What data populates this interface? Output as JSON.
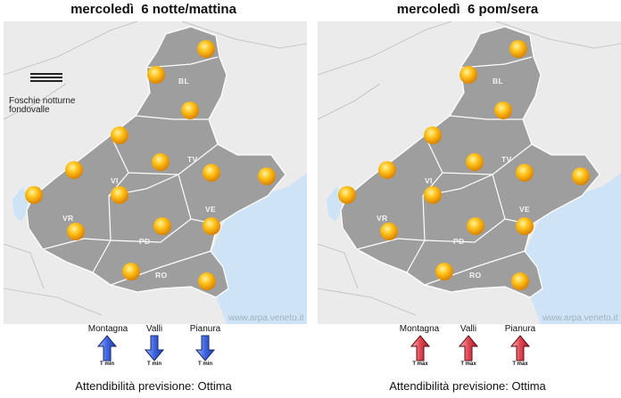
{
  "panels": [
    {
      "title": "mercoledì  6 notte/mattina",
      "legend_line1": "Foschie notturne",
      "legend_line2": "fondovalle",
      "credit": "www.arpa.veneto.it",
      "regions": [
        "BL",
        "TV",
        "VI",
        "VR",
        "VE",
        "PD",
        "RO"
      ],
      "temps": [
        {
          "zone": "Montagna",
          "caption": "T min",
          "trend": "up"
        },
        {
          "zone": "Valli",
          "caption": "T min",
          "trend": "down"
        },
        {
          "zone": "Pianura",
          "caption": "T min",
          "trend": "down"
        }
      ],
      "arrow_color": "#4a6fe0",
      "footer": "Attendibilità previsione: Ottima"
    },
    {
      "title": "mercoledì  6 pom/sera",
      "credit": "www.arpa.veneto.it",
      "regions": [
        "BL",
        "TV",
        "VI",
        "VR",
        "VE",
        "PD",
        "RO"
      ],
      "temps": [
        {
          "zone": "Montagna",
          "caption": "T max",
          "trend": "up"
        },
        {
          "zone": "Valli",
          "caption": "T max",
          "trend": "up"
        },
        {
          "zone": "Pianura",
          "caption": "T max",
          "trend": "up"
        }
      ],
      "arrow_color": "#e0505a",
      "footer": "Attendibilità previsione: Ottima"
    }
  ],
  "weather_icon": "sun-icon"
}
